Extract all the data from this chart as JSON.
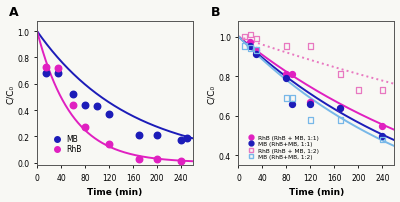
{
  "panel_A": {
    "MB_points": [
      [
        15,
        0.68
      ],
      [
        35,
        0.68
      ],
      [
        60,
        0.52
      ],
      [
        80,
        0.44
      ],
      [
        100,
        0.43
      ],
      [
        120,
        0.37
      ],
      [
        170,
        0.21
      ],
      [
        200,
        0.21
      ],
      [
        240,
        0.17
      ],
      [
        250,
        0.19
      ]
    ],
    "RhB_points": [
      [
        15,
        0.73
      ],
      [
        35,
        0.72
      ],
      [
        60,
        0.44
      ],
      [
        80,
        0.27
      ],
      [
        120,
        0.14
      ],
      [
        170,
        0.03
      ],
      [
        200,
        0.03
      ],
      [
        240,
        0.01
      ]
    ],
    "MB_fit_k": 0.0065,
    "RhB_fit_k": 0.0175,
    "MB_color": "#1c1cb8",
    "RhB_color": "#e020c0",
    "xlabel": "Time (min)",
    "ylabel": "C/C₀",
    "label_A": "A",
    "xlim": [
      0,
      260
    ],
    "ylim": [
      -0.02,
      1.08
    ],
    "xticks": [
      0,
      40,
      80,
      120,
      160,
      200,
      240
    ],
    "yticks": [
      0.0,
      0.2,
      0.4,
      0.6,
      0.8,
      1.0
    ]
  },
  "panel_B": {
    "RhB_11_points": [
      [
        20,
        0.97
      ],
      [
        30,
        0.93
      ],
      [
        80,
        0.81
      ],
      [
        90,
        0.81
      ],
      [
        120,
        0.67
      ],
      [
        170,
        0.64
      ],
      [
        240,
        0.55
      ]
    ],
    "MB_11_points": [
      [
        20,
        0.95
      ],
      [
        30,
        0.91
      ],
      [
        80,
        0.79
      ],
      [
        90,
        0.66
      ],
      [
        120,
        0.66
      ],
      [
        170,
        0.64
      ],
      [
        240,
        0.5
      ]
    ],
    "RhB_12_points": [
      [
        10,
        1.0
      ],
      [
        20,
        1.01
      ],
      [
        30,
        0.99
      ],
      [
        80,
        0.95
      ],
      [
        120,
        0.95
      ],
      [
        170,
        0.81
      ],
      [
        200,
        0.73
      ],
      [
        240,
        0.73
      ]
    ],
    "MB_12_points": [
      [
        10,
        0.95
      ],
      [
        20,
        0.94
      ],
      [
        30,
        0.93
      ],
      [
        80,
        0.69
      ],
      [
        90,
        0.69
      ],
      [
        120,
        0.58
      ],
      [
        170,
        0.58
      ],
      [
        240,
        0.48
      ]
    ],
    "RhB_11_k": 0.00245,
    "MB_11_k": 0.00285,
    "RhB_12_k": 0.00105,
    "MB_12_k": 0.0031,
    "RhB_11_color": "#e020c0",
    "MB_11_color": "#1c1cb8",
    "RhB_12_color": "#e878c0",
    "MB_12_color": "#78b8e8",
    "xlabel": "Time (min)",
    "ylabel": "C/C₀",
    "label_B": "B",
    "xlim": [
      0,
      260
    ],
    "ylim": [
      0.35,
      1.08
    ],
    "xticks": [
      0,
      40,
      80,
      120,
      160,
      200,
      240
    ],
    "yticks": [
      0.4,
      0.6,
      0.8,
      1.0
    ],
    "legend_labels": [
      "RhB (RhB + MB, 1:1)",
      "MB (RhB+MB, 1:1)",
      "RhB (RhB + MB, 1:2)",
      "MB (RhB+MB, 1:2)"
    ]
  },
  "bg_color": "#f8f8f4",
  "spine_color": "#555555"
}
